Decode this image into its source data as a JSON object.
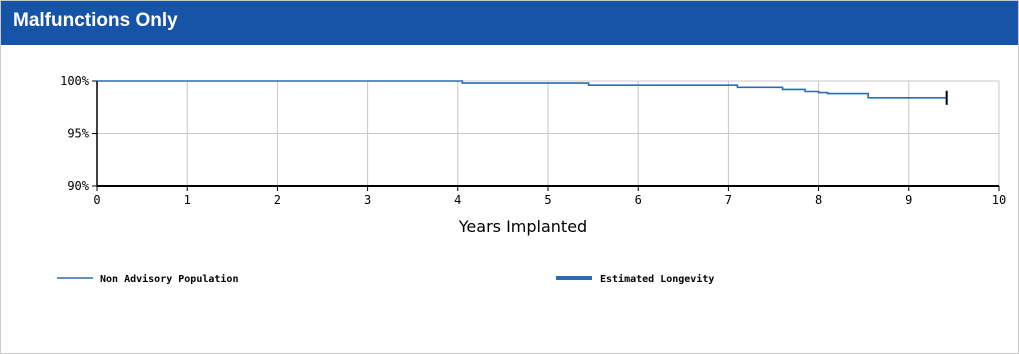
{
  "header": {
    "title": "Malfunctions Only"
  },
  "colors": {
    "header_bg": "#1654a8",
    "series_line": "#2b6cb0",
    "grid": "#c8c8c8"
  },
  "chart_data": {
    "type": "line",
    "xlabel": "Years Implanted",
    "ylabel": "",
    "xlim": [
      0,
      10
    ],
    "ylim": [
      90,
      100
    ],
    "x_ticks": [
      0,
      1,
      2,
      3,
      4,
      5,
      6,
      7,
      8,
      9,
      10
    ],
    "y_ticks": [
      {
        "value": 90,
        "label": "90%"
      },
      {
        "value": 95,
        "label": "95%"
      },
      {
        "value": 100,
        "label": "100%"
      }
    ],
    "grid": true,
    "legend_position": "bottom",
    "series": [
      {
        "name": "Non Advisory Population",
        "step": true,
        "x": [
          0,
          4.05,
          5.45,
          7.1,
          7.6,
          7.85,
          8.0,
          8.1,
          8.55,
          9.42
        ],
        "y": [
          100,
          99.8,
          99.6,
          99.4,
          99.2,
          99.0,
          98.9,
          98.8,
          98.4,
          98.4
        ],
        "end_marker": true
      }
    ],
    "legend": [
      {
        "label": "Non Advisory Population",
        "style": "thin"
      },
      {
        "label": "Estimated Longevity",
        "style": "thick"
      }
    ]
  }
}
